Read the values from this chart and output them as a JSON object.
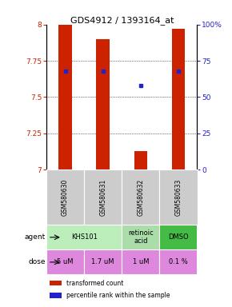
{
  "title": "GDS4912 / 1393164_at",
  "samples": [
    "GSM580630",
    "GSM580631",
    "GSM580632",
    "GSM580633"
  ],
  "bar_bottoms": [
    7.0,
    7.0,
    7.0,
    7.0
  ],
  "bar_tops": [
    8.0,
    7.9,
    7.13,
    7.97
  ],
  "bar_color": "#cc2200",
  "percentile_values": [
    7.68,
    7.68,
    7.58,
    7.68
  ],
  "percentile_color": "#2222cc",
  "ylim": [
    7.0,
    8.0
  ],
  "yticks_left": [
    7.0,
    7.25,
    7.5,
    7.75,
    8.0
  ],
  "yticks_right": [
    0,
    25,
    50,
    75,
    100
  ],
  "ytick_labels_left": [
    "7",
    "7.25",
    "7.5",
    "7.75",
    "8"
  ],
  "ytick_labels_right": [
    "0",
    "25",
    "50",
    "75",
    "100%"
  ],
  "left_tick_color": "#cc2200",
  "right_tick_color": "#2222cc",
  "dose_labels": [
    "5 uM",
    "1.7 uM",
    "1 uM",
    "0.1 %"
  ],
  "dose_color": "#dd88dd",
  "sample_bg_color": "#cccccc",
  "bar_width": 0.35,
  "agent_spans": [
    [
      0,
      2,
      "KHS101",
      "#bbeebb"
    ],
    [
      2,
      3,
      "retinoic\nacid",
      "#aaddaa"
    ],
    [
      3,
      4,
      "DMSO",
      "#44bb44"
    ]
  ]
}
